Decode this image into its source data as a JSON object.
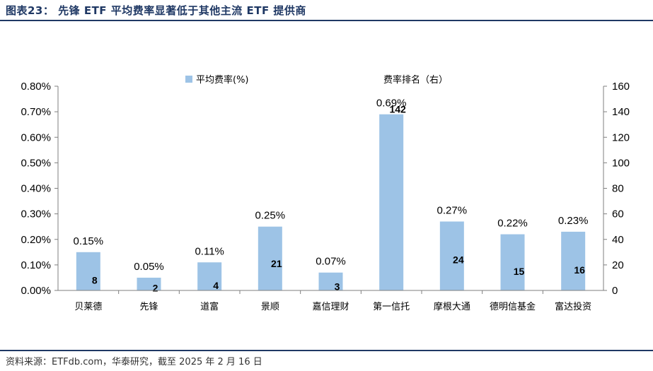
{
  "header": {
    "title": "图表23： 先锋 ETF 平均费率显著低于其他主流 ETF 提供商"
  },
  "footer": {
    "source": "资料来源：ETFdb.com，华泰研究，截至 2025 年 2 月 16 日"
  },
  "chart_data": {
    "type": "bar",
    "categories": [
      "贝莱德",
      "先锋",
      "道富",
      "景顺",
      "嘉信理财",
      "第一信托",
      "摩根大通",
      "德明信基金",
      "富达投资"
    ],
    "series": [
      {
        "name": "平均费率(%)",
        "axis": "left",
        "values": [
          0.15,
          0.05,
          0.11,
          0.25,
          0.07,
          0.69,
          0.27,
          0.22,
          0.23
        ],
        "labels": [
          "0.15%",
          "0.05%",
          "0.11%",
          "0.25%",
          "0.07%",
          "0.69%",
          "0.27%",
          "0.22%",
          "0.23%"
        ]
      },
      {
        "name": "费率排名（右）",
        "axis": "right",
        "values": [
          8,
          2,
          4,
          21,
          3,
          142,
          24,
          15,
          16
        ]
      }
    ],
    "left_axis": {
      "ylim": [
        0,
        0.8
      ],
      "ticks": [
        "0.00%",
        "0.10%",
        "0.20%",
        "0.30%",
        "0.40%",
        "0.50%",
        "0.60%",
        "0.70%",
        "0.80%"
      ]
    },
    "right_axis": {
      "ylim": [
        0,
        160
      ],
      "ticks": [
        "0",
        "20",
        "40",
        "60",
        "80",
        "100",
        "120",
        "140",
        "160"
      ]
    },
    "bar_color": "#9dc3e6",
    "legend_placement": "top",
    "grid": false
  }
}
